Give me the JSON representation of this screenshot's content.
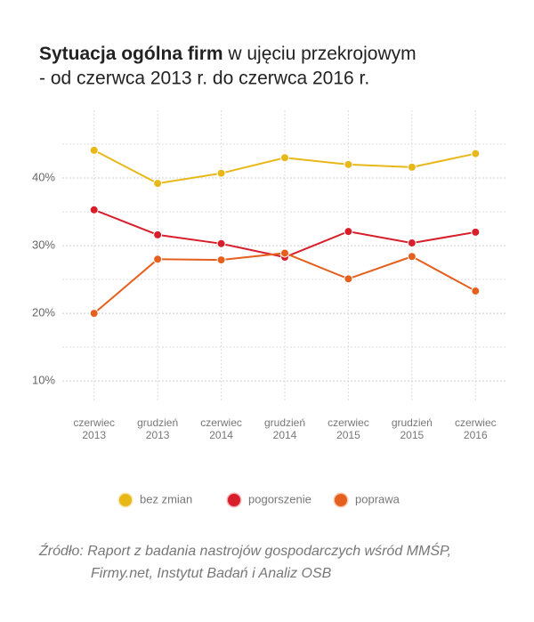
{
  "chart_data": {
    "type": "line",
    "title_bold": "Sytuacja ogólna firm",
    "title_rest": " w ujęciu przekrojowym",
    "title_line2": "- od czerwca 2013 r. do czerwca 2016 r.",
    "categories": [
      [
        "czerwiec",
        "2013"
      ],
      [
        "grudzień",
        "2013"
      ],
      [
        "czerwiec",
        "2014"
      ],
      [
        "grudzień",
        "2014"
      ],
      [
        "czerwiec",
        "2015"
      ],
      [
        "grudzień",
        "2015"
      ],
      [
        "czerwiec",
        "2016"
      ]
    ],
    "series": [
      {
        "name": "bez zmian",
        "color": "#e8b818",
        "values": [
          44.1,
          39.2,
          40.7,
          43.0,
          42.0,
          41.6,
          43.6
        ]
      },
      {
        "name": "pogorszenie",
        "color": "#d81e2a",
        "values": [
          35.3,
          31.6,
          30.3,
          28.3,
          32.1,
          30.4,
          32.0
        ]
      },
      {
        "name": "poprawa",
        "color": "#e5601e",
        "values": [
          20.0,
          28.0,
          27.9,
          28.9,
          25.1,
          28.4,
          23.3
        ]
      }
    ],
    "ylim": [
      7,
      50
    ],
    "yticks": [
      {
        "value": 10,
        "label": "10%"
      },
      {
        "value": 20,
        "label": "20%"
      },
      {
        "value": 30,
        "label": "30%"
      },
      {
        "value": 40,
        "label": "40%"
      }
    ],
    "minor_yticks": [
      15,
      25,
      35,
      45
    ],
    "grid": true,
    "legend": "bottom",
    "source": [
      "Źródło: Raport z badania nastrojów gospodarczych wśród MMŚP,",
      "Firmy.net, Instytut Badań i Analiz OSB"
    ]
  }
}
